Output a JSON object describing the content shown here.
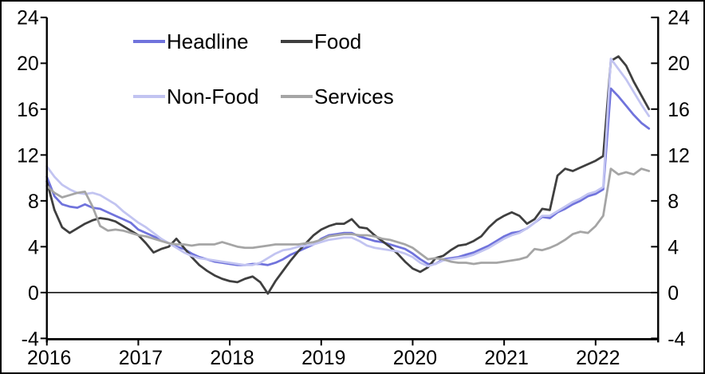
{
  "chart_data": {
    "type": "line",
    "title": "",
    "xlabel": "",
    "ylabel": "",
    "x_unit": "monthly",
    "x_range": "Jan 2016 - Aug 2022",
    "x_tick_labels": [
      "2016",
      "2017",
      "2018",
      "2019",
      "2020",
      "2021",
      "2022"
    ],
    "y_ticks": [
      -4,
      0,
      4,
      8,
      12,
      16,
      20,
      24
    ],
    "ylim": [
      -4,
      24
    ],
    "grid": "zero-line-only",
    "dual_y_axis": true,
    "legend_position": "top-inside-2x2",
    "axis_color": "#000000",
    "series": [
      {
        "name": "Headline",
        "color": "#7073DC",
        "values": [
          10.1,
          8.4,
          7.7,
          7.5,
          7.4,
          7.7,
          7.4,
          7.3,
          7.0,
          6.7,
          6.4,
          6.1,
          5.5,
          5.2,
          4.9,
          4.6,
          4.3,
          4.0,
          3.8,
          3.4,
          3.1,
          2.9,
          2.7,
          2.6,
          2.5,
          2.4,
          2.4,
          2.5,
          2.5,
          2.4,
          2.6,
          2.9,
          3.3,
          3.6,
          3.9,
          4.2,
          4.7,
          5.0,
          5.1,
          5.2,
          5.2,
          4.9,
          4.7,
          4.5,
          4.4,
          4.2,
          4.0,
          3.8,
          3.4,
          2.9,
          2.5,
          2.5,
          2.9,
          3.0,
          3.1,
          3.3,
          3.5,
          3.8,
          4.1,
          4.5,
          4.9,
          5.2,
          5.3,
          5.6,
          6.1,
          6.6,
          6.5,
          7.0,
          7.3,
          7.7,
          8.0,
          8.4,
          8.6,
          9.0,
          17.8,
          17.1,
          16.3,
          15.5,
          14.8,
          14.3
        ]
      },
      {
        "name": "Food",
        "color": "#3F3F3F",
        "values": [
          9.7,
          7.2,
          5.7,
          5.2,
          5.6,
          6.0,
          6.3,
          6.5,
          6.4,
          6.2,
          5.8,
          5.4,
          5.0,
          4.3,
          3.5,
          3.8,
          4.0,
          4.7,
          3.9,
          3.1,
          2.4,
          1.9,
          1.5,
          1.2,
          1.0,
          0.9,
          1.2,
          1.4,
          0.9,
          -0.1,
          1.0,
          1.9,
          2.8,
          3.6,
          4.3,
          5.0,
          5.5,
          5.8,
          6.0,
          6.0,
          6.4,
          5.7,
          5.6,
          5.0,
          4.5,
          4.0,
          3.4,
          2.7,
          2.1,
          1.8,
          2.2,
          3.0,
          3.2,
          3.7,
          4.1,
          4.2,
          4.5,
          4.9,
          5.7,
          6.3,
          6.7,
          7.0,
          6.7,
          6.0,
          6.4,
          7.3,
          7.2,
          10.2,
          10.8,
          10.6,
          10.9,
          11.2,
          11.5,
          11.9,
          20.2,
          20.6,
          19.8,
          18.4,
          17.2,
          16.0
        ]
      },
      {
        "name": "Non-Food",
        "color": "#C2C4F1",
        "values": [
          11.0,
          10.1,
          9.4,
          9.0,
          8.7,
          8.6,
          8.7,
          8.5,
          8.1,
          7.7,
          7.1,
          6.6,
          6.1,
          5.7,
          5.2,
          4.7,
          4.3,
          3.9,
          3.5,
          3.2,
          3.0,
          2.9,
          2.8,
          2.7,
          2.6,
          2.5,
          2.4,
          2.4,
          2.6,
          3.0,
          3.4,
          3.7,
          3.8,
          4.0,
          4.1,
          4.2,
          4.4,
          4.6,
          4.7,
          4.8,
          4.8,
          4.5,
          4.1,
          3.9,
          3.8,
          3.7,
          3.6,
          3.4,
          3.1,
          2.6,
          2.3,
          2.5,
          2.8,
          2.9,
          3.0,
          3.1,
          3.3,
          3.6,
          3.9,
          4.3,
          4.7,
          5.0,
          5.2,
          5.6,
          6.1,
          6.7,
          6.7,
          7.1,
          7.5,
          7.9,
          8.2,
          8.6,
          8.8,
          9.2,
          20.4,
          19.5,
          18.6,
          17.5,
          16.4,
          15.4
        ]
      },
      {
        "name": "Services",
        "color": "#A5A5A5",
        "values": [
          9.3,
          8.7,
          8.3,
          8.5,
          8.7,
          8.8,
          7.5,
          5.8,
          5.4,
          5.5,
          5.4,
          5.2,
          5.0,
          4.9,
          4.7,
          4.5,
          4.3,
          4.2,
          4.2,
          4.1,
          4.2,
          4.2,
          4.2,
          4.4,
          4.2,
          4.0,
          3.9,
          3.9,
          4.0,
          4.1,
          4.2,
          4.2,
          4.2,
          4.2,
          4.3,
          4.4,
          4.6,
          4.9,
          5.0,
          5.1,
          5.1,
          5.0,
          5.0,
          4.9,
          4.7,
          4.6,
          4.4,
          4.2,
          3.9,
          3.4,
          2.9,
          3.0,
          2.9,
          2.7,
          2.6,
          2.6,
          2.5,
          2.6,
          2.6,
          2.6,
          2.7,
          2.8,
          2.9,
          3.1,
          3.8,
          3.7,
          3.9,
          4.2,
          4.6,
          5.1,
          5.3,
          5.2,
          5.8,
          6.7,
          10.8,
          10.3,
          10.5,
          10.3,
          10.8,
          10.6
        ]
      }
    ]
  }
}
